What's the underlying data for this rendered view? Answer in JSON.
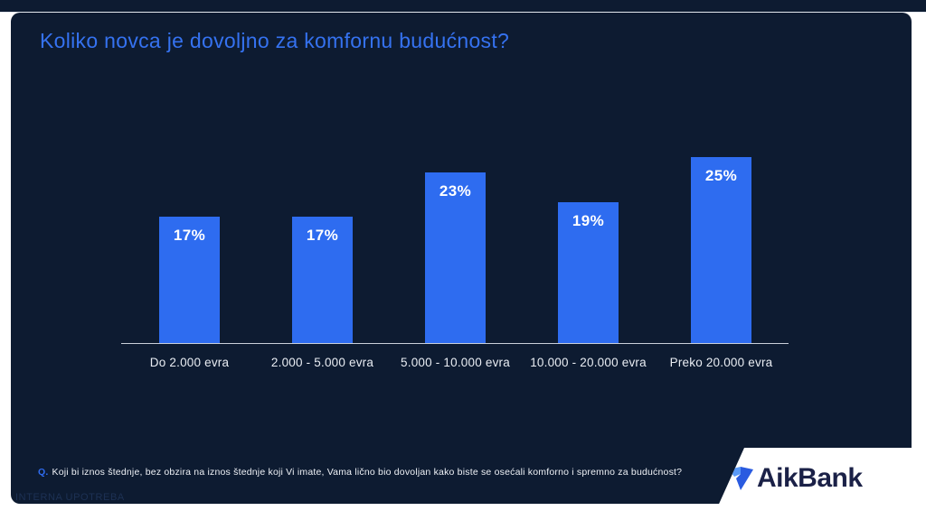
{
  "slide": {
    "title": "Koliko novca je dovoljno za komfornu budućnost?",
    "footnote_prefix": "Q.",
    "footnote": "Koji bi iznos štednje, bez obzira na iznos štednje koji Vi imate, Vama lično bio dovoljan kako biste se osećali komforno i spremno za budućnost?",
    "watermark": "INTERNA UPOTREBA",
    "logo_text": "AikBank"
  },
  "colors": {
    "panel_background": "#0d1b31",
    "bar_blue": "#2e6cf0",
    "title_blue": "#3572f0",
    "axis_line": "#c9d0da",
    "category_label": "#e9edf3",
    "value_label": "#ffffff",
    "footnote_q": "#2f6cf0",
    "watermark": "#1d3154",
    "logo_navy": "#1b2147",
    "logo_light_blue": "#5a9af8",
    "logo_dark_blue": "#2a5be0"
  },
  "chart_data": {
    "type": "bar",
    "title": "Koliko novca je dovoljno za komfornu budućnost?",
    "categories": [
      "Do 2.000 evra",
      "2.000 - 5.000 evra",
      "5.000 - 10.000 evra",
      "10.000 - 20.000 evra",
      "Preko 20.000 evra"
    ],
    "values": [
      17,
      17,
      23,
      19,
      25
    ],
    "value_labels": [
      "17%",
      "17%",
      "23%",
      "19%",
      "25%"
    ],
    "unit": "%",
    "xlabel": "",
    "ylabel": "",
    "ylim": [
      0,
      27
    ],
    "grid": false,
    "legend": false,
    "y_axis_shown": false,
    "data_labels_position": "inside-top"
  }
}
